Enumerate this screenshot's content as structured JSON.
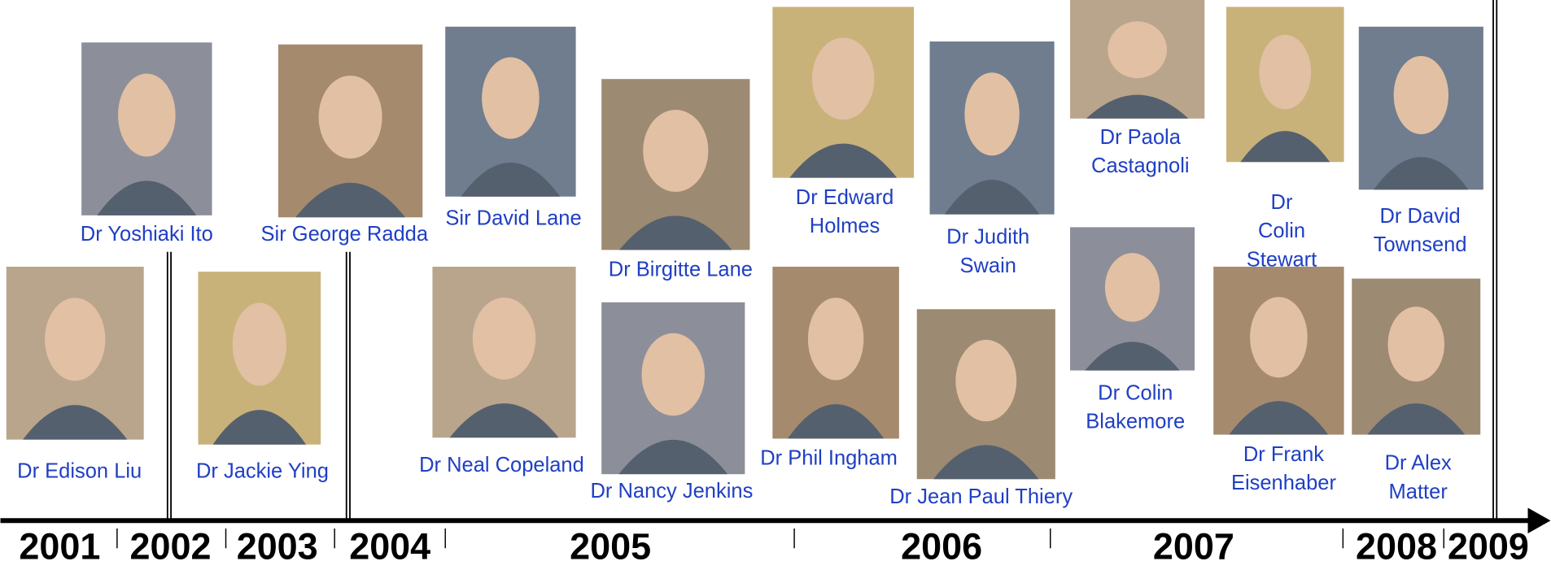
{
  "people": [
    {
      "name": [
        "Dr Edison Liu"
      ]
    },
    {
      "name": [
        "Dr Yoshiaki Ito"
      ]
    },
    {
      "name": [
        "Dr Jackie Ying"
      ]
    },
    {
      "name": [
        "Sir George Radda"
      ]
    },
    {
      "name": [
        "Sir David Lane"
      ]
    },
    {
      "name": [
        "Dr Birgitte Lane"
      ]
    },
    {
      "name": [
        "Dr Neal Copeland"
      ]
    },
    {
      "name": [
        "Dr Nancy Jenkins"
      ]
    },
    {
      "name": [
        "Dr Edward",
        "Holmes"
      ]
    },
    {
      "name": [
        "Dr Phil Ingham"
      ]
    },
    {
      "name": [
        "Dr Judith",
        "Swain"
      ]
    },
    {
      "name": [
        "Dr Jean Paul Thiery"
      ]
    },
    {
      "name": [
        "Dr Paola",
        "Castagnoli"
      ]
    },
    {
      "name": [
        "Dr Colin",
        "Blakemore"
      ]
    },
    {
      "name": [
        "Dr",
        "Colin",
        "Stewart"
      ]
    },
    {
      "name": [
        "Dr Frank",
        "Eisenhaber"
      ]
    },
    {
      "name": [
        "Dr David",
        "Townsend"
      ]
    },
    {
      "name": [
        "Dr Alex",
        "Matter"
      ]
    }
  ],
  "years": [
    "2001",
    "2002",
    "2003",
    "2004",
    "2005",
    "2006",
    "2007",
    "2008",
    "2009"
  ]
}
